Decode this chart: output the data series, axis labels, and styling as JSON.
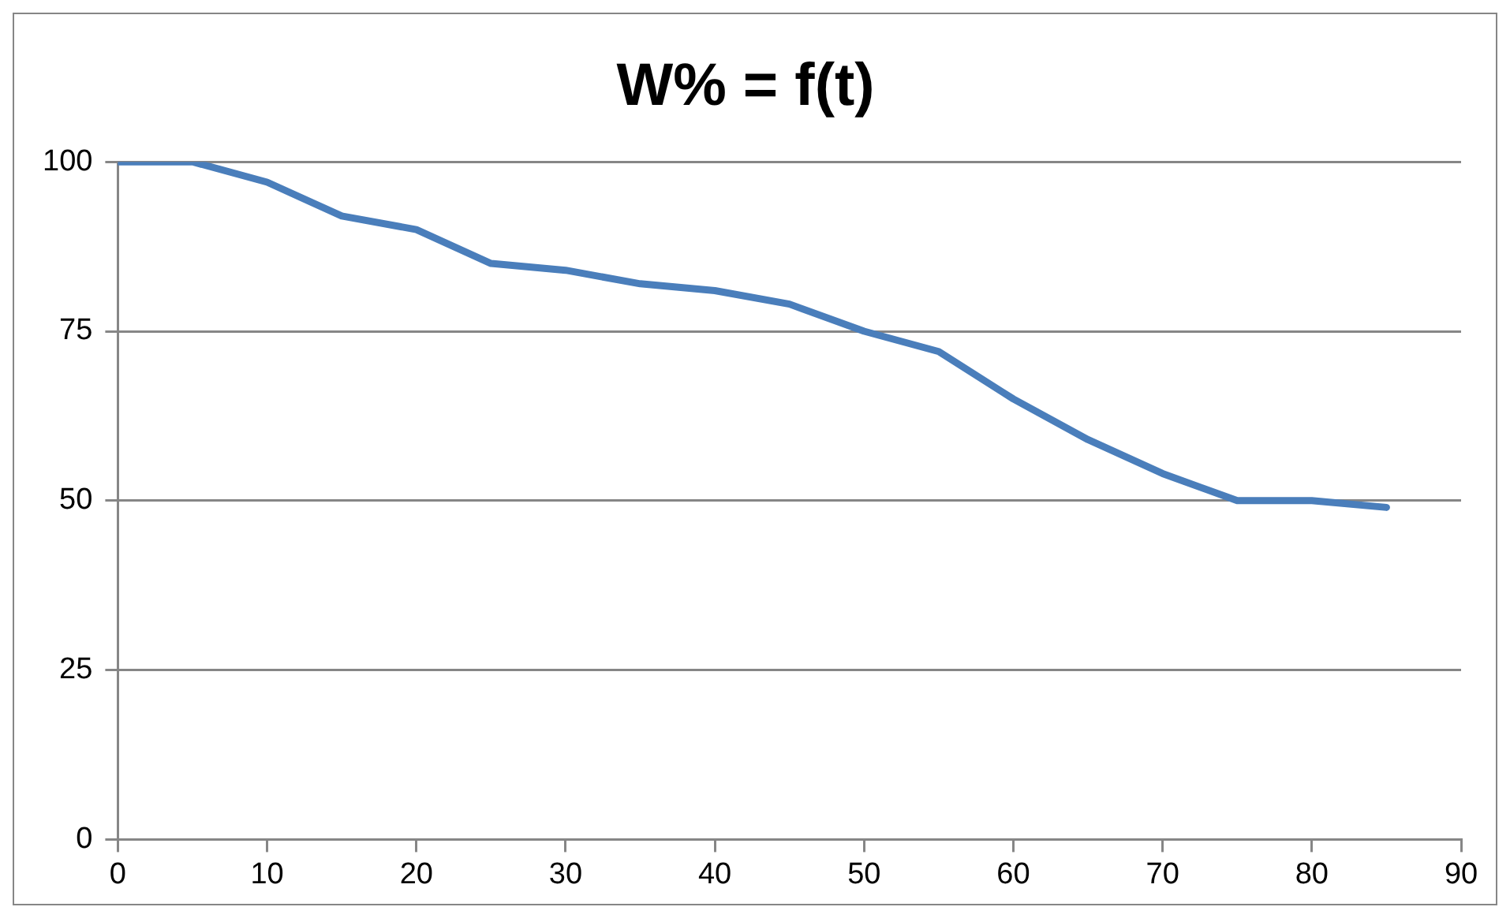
{
  "chart_data": {
    "type": "line",
    "title": "W% = f(t)",
    "x": [
      0,
      5,
      10,
      15,
      20,
      25,
      30,
      35,
      40,
      45,
      50,
      55,
      60,
      65,
      70,
      75,
      80,
      85
    ],
    "series": [
      {
        "color": "#4a7ebb",
        "values": [
          100,
          100,
          97,
          92,
          90,
          85,
          84,
          82,
          81,
          79,
          75,
          72,
          65,
          59,
          54,
          50,
          50,
          49
        ]
      }
    ],
    "xlim": [
      0,
      90
    ],
    "xticks": [
      0,
      10,
      20,
      30,
      40,
      50,
      60,
      70,
      80,
      90
    ],
    "ylim": [
      0,
      100
    ],
    "yticks": [
      0,
      25,
      50,
      75,
      100
    ],
    "grid": "y",
    "legend": false,
    "marker": "none",
    "line_style": "solid"
  }
}
